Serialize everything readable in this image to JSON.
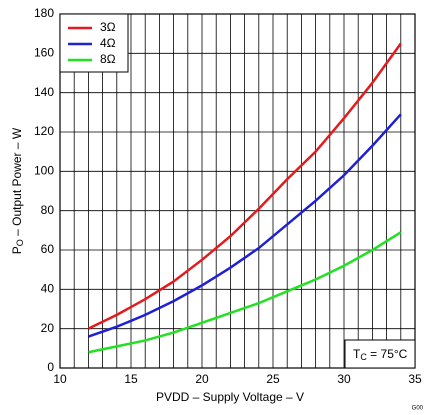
{
  "chart_data": {
    "type": "line",
    "x_label": "PVDD – Supply Voltage – V",
    "y_label": "P",
    "y_label_sub": "O",
    "y_label_rest": " – Output Power – W",
    "annotation": "T",
    "annotation_sub": "C",
    "annotation_rest": " = 75°C",
    "figure_id": "G00",
    "x": [
      12,
      14,
      16,
      18,
      20,
      22,
      24,
      26,
      28,
      30,
      32,
      34
    ],
    "series": [
      {
        "name": "3Ω",
        "color": "#e41a1c",
        "values": [
          20,
          27,
          35,
          44,
          55,
          67,
          81,
          96,
          110,
          127,
          145,
          165
        ]
      },
      {
        "name": "4Ω",
        "color": "#1f1fd6",
        "values": [
          16,
          21,
          27,
          34,
          42,
          51,
          61,
          73,
          85,
          98,
          113,
          129
        ]
      },
      {
        "name": "8Ω",
        "color": "#22e022",
        "values": [
          8,
          11,
          14,
          18,
          23,
          28,
          33,
          39,
          45,
          52,
          60,
          69
        ]
      }
    ],
    "xlim": [
      10,
      35
    ],
    "xticks": [
      10,
      15,
      20,
      25,
      30,
      35
    ],
    "xgrid": [
      11,
      12,
      13,
      14,
      16,
      17,
      18,
      19,
      21,
      22,
      23,
      24,
      26,
      27,
      28,
      29,
      31,
      32,
      33,
      34
    ],
    "ylim": [
      0,
      180
    ],
    "yticks": [
      0,
      20,
      40,
      60,
      80,
      100,
      120,
      140,
      160,
      180
    ],
    "grid": true,
    "legend": "top-left"
  }
}
